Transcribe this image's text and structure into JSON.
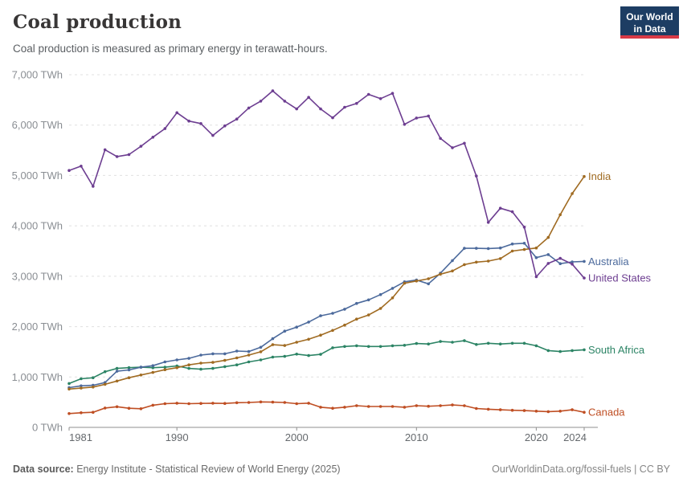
{
  "header": {
    "title": "Coal production",
    "subtitle": "Coal production is measured as primary energy in terawatt-hours.",
    "logo_line1": "Our World",
    "logo_line2": "in Data"
  },
  "footer": {
    "source_label": "Data source:",
    "source_text": " Energy Institute - Statistical Review of World Energy (2025)",
    "right_text": "OurWorldinData.org/fossil-fuels | CC BY"
  },
  "colors": {
    "logo_bg": "#1d3d63",
    "logo_stripe": "#d93a46",
    "gridline": "#e0e0e0",
    "axis_line": "#8f8f8f",
    "y_tick_label": "#8a8e93",
    "x_tick_label": "#65696d"
  },
  "chart_data": {
    "type": "line",
    "title": "Coal production",
    "unit": "TWh",
    "grid": "horizontal-dashed",
    "legend_position": "right-end-labels",
    "ylim": [
      0,
      7000
    ],
    "y_ticks": [
      0,
      1000,
      2000,
      3000,
      4000,
      5000,
      6000,
      7000
    ],
    "x_ticks": [
      1981,
      1990,
      2000,
      2010,
      2020,
      2024
    ],
    "years": [
      1981,
      1982,
      1983,
      1984,
      1985,
      1986,
      1987,
      1988,
      1989,
      1990,
      1991,
      1992,
      1993,
      1994,
      1995,
      1996,
      1997,
      1998,
      1999,
      2000,
      2001,
      2002,
      2003,
      2004,
      2005,
      2006,
      2007,
      2008,
      2009,
      2010,
      2011,
      2012,
      2013,
      2014,
      2015,
      2016,
      2017,
      2018,
      2019,
      2020,
      2021,
      2022,
      2023,
      2024
    ],
    "series": [
      {
        "name": "South Africa",
        "color": "#2c8465",
        "values": [
          870,
          965,
          985,
          1105,
          1170,
          1185,
          1195,
          1185,
          1195,
          1220,
          1170,
          1155,
          1170,
          1205,
          1240,
          1300,
          1340,
          1395,
          1410,
          1455,
          1425,
          1450,
          1580,
          1605,
          1620,
          1605,
          1605,
          1620,
          1630,
          1665,
          1655,
          1705,
          1690,
          1720,
          1645,
          1670,
          1655,
          1670,
          1670,
          1620,
          1525,
          1505,
          1525,
          1540
        ]
      },
      {
        "name": "Canada",
        "color": "#bf4e23",
        "values": [
          275,
          290,
          300,
          385,
          410,
          380,
          370,
          440,
          470,
          480,
          470,
          475,
          480,
          475,
          490,
          495,
          505,
          500,
          495,
          470,
          480,
          400,
          380,
          400,
          430,
          415,
          415,
          415,
          400,
          430,
          420,
          430,
          445,
          430,
          375,
          360,
          350,
          340,
          333,
          322,
          313,
          322,
          349,
          300
        ]
      },
      {
        "name": "Australia",
        "color": "#4c6a9c",
        "values": [
          790,
          825,
          835,
          890,
          1115,
          1140,
          1195,
          1225,
          1300,
          1340,
          1370,
          1435,
          1460,
          1460,
          1515,
          1505,
          1590,
          1760,
          1910,
          1990,
          2090,
          2215,
          2265,
          2345,
          2460,
          2530,
          2635,
          2760,
          2890,
          2925,
          2850,
          3060,
          3310,
          3555,
          3555,
          3550,
          3560,
          3640,
          3655,
          3370,
          3430,
          3250,
          3285,
          3295
        ]
      },
      {
        "name": "India",
        "color": "#a06b22",
        "values": [
          760,
          780,
          800,
          855,
          920,
          985,
          1040,
          1090,
          1145,
          1185,
          1240,
          1275,
          1290,
          1330,
          1380,
          1435,
          1500,
          1640,
          1625,
          1690,
          1750,
          1830,
          1925,
          2030,
          2150,
          2230,
          2360,
          2570,
          2860,
          2905,
          2950,
          3040,
          3105,
          3230,
          3280,
          3300,
          3350,
          3500,
          3530,
          3560,
          3770,
          4220,
          4640,
          4980
        ]
      },
      {
        "name": "United States",
        "color": "#6d3e91",
        "values": [
          5100,
          5185,
          4785,
          5510,
          5375,
          5415,
          5580,
          5760,
          5930,
          6245,
          6080,
          6030,
          5795,
          5985,
          6120,
          6340,
          6475,
          6680,
          6475,
          6320,
          6550,
          6320,
          6145,
          6355,
          6430,
          6610,
          6525,
          6630,
          6015,
          6140,
          6180,
          5735,
          5550,
          5640,
          4990,
          4070,
          4350,
          4280,
          3975,
          2990,
          3255,
          3355,
          3240,
          2965
        ]
      }
    ]
  }
}
